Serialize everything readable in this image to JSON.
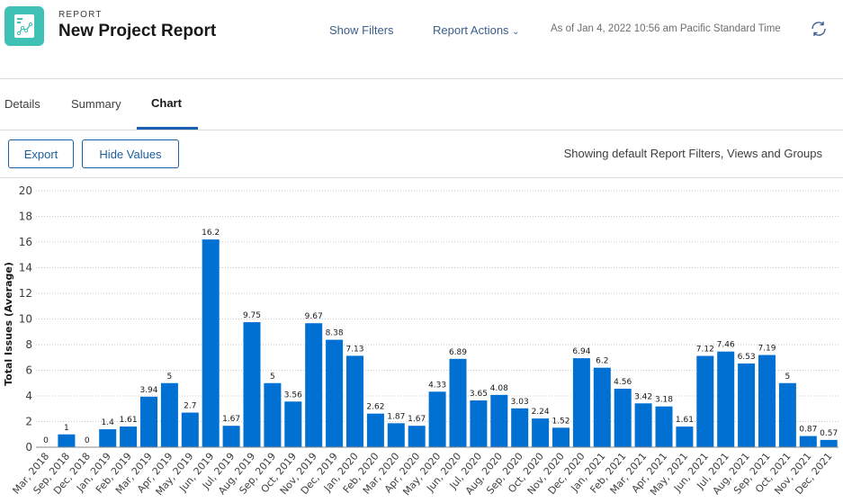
{
  "header": {
    "eyebrow": "REPORT",
    "title": "New Project Report",
    "show_filters": "Show Filters",
    "report_actions": "Report Actions",
    "as_of": "As of Jan 4, 2022 10:56 am Pacific Standard Time"
  },
  "tabs": [
    {
      "label": "Details"
    },
    {
      "label": "Summary"
    },
    {
      "label": "Chart"
    }
  ],
  "toolbar": {
    "export": "Export",
    "hide_values": "Hide Values",
    "showing": "Showing default Report Filters, Views and Groups"
  },
  "colors": {
    "bar": "#0070d2",
    "accent": "#1b5fb4",
    "logo": "#3fc1b5"
  },
  "chart_data": {
    "type": "bar",
    "ylabel": "Total Issues (Average)",
    "ylim": [
      0,
      20
    ],
    "yticks": [
      0,
      2,
      4,
      6,
      8,
      10,
      12,
      14,
      16,
      18,
      20
    ],
    "grid": true,
    "categories": [
      "Mar, 2018",
      "Sep, 2018",
      "Dec, 2018",
      "Jan, 2019",
      "Feb, 2019",
      "Mar, 2019",
      "Apr, 2019",
      "May, 2019",
      "Jun, 2019",
      "Jul, 2019",
      "Aug, 2019",
      "Sep, 2019",
      "Oct, 2019",
      "Nov, 2019",
      "Dec, 2019",
      "Jan, 2020",
      "Feb, 2020",
      "Mar, 2020",
      "Apr, 2020",
      "May, 2020",
      "Jun, 2020",
      "Jul, 2020",
      "Aug, 2020",
      "Sep, 2020",
      "Oct, 2020",
      "Nov, 2020",
      "Dec, 2020",
      "Jan, 2021",
      "Feb, 2021",
      "Mar, 2021",
      "Apr, 2021",
      "May, 2021",
      "Jun, 2021",
      "Jul, 2021",
      "Aug, 2021",
      "Sep, 2021",
      "Oct, 2021",
      "Nov, 2021",
      "Dec, 2021"
    ],
    "values": [
      0,
      1,
      0,
      1.4,
      1.61,
      3.94,
      5,
      2.7,
      16.2,
      1.67,
      9.75,
      5,
      3.56,
      9.67,
      8.38,
      7.13,
      2.62,
      1.87,
      1.67,
      4.33,
      6.89,
      3.65,
      4.08,
      3.03,
      2.24,
      1.52,
      6.94,
      6.2,
      4.56,
      3.42,
      3.18,
      1.61,
      7.12,
      7.46,
      6.53,
      7.19,
      5,
      0.87,
      0.57
    ]
  }
}
